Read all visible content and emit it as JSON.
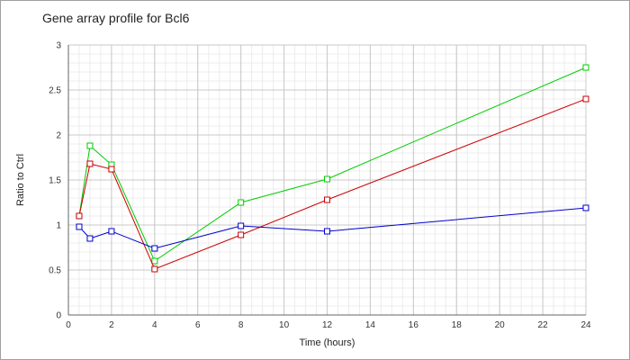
{
  "chart_data": {
    "type": "line",
    "title": "Gene array profile for Bcl6",
    "xlabel": "Time (hours)",
    "ylabel": "Ratio to Ctrl",
    "xlim": [
      0,
      24
    ],
    "ylim": [
      0,
      3
    ],
    "x_ticks": [
      "0",
      "2",
      "4",
      "6",
      "8",
      "10",
      "12",
      "14",
      "16",
      "18",
      "20",
      "22",
      "24"
    ],
    "y_ticks": [
      "0",
      "0.5",
      "1",
      "1.5",
      "2",
      "2.5",
      "3"
    ],
    "grid": true,
    "legend": "none",
    "series": [
      {
        "color": "#00cc00",
        "marker": "square",
        "x": [
          0.5,
          1,
          2,
          4,
          8,
          12,
          24
        ],
        "y": [
          1.1,
          1.88,
          1.67,
          0.6,
          1.25,
          1.51,
          2.75
        ]
      },
      {
        "color": "#cc0000",
        "marker": "square",
        "x": [
          0.5,
          1,
          2,
          4,
          8,
          12,
          24
        ],
        "y": [
          1.1,
          1.68,
          1.62,
          0.51,
          0.89,
          1.28,
          2.4
        ]
      },
      {
        "color": "#0000cc",
        "marker": "square",
        "x": [
          0.5,
          1,
          2,
          4,
          8,
          12,
          24
        ],
        "y": [
          0.98,
          0.85,
          0.93,
          0.74,
          0.99,
          0.93,
          1.19
        ]
      }
    ]
  }
}
